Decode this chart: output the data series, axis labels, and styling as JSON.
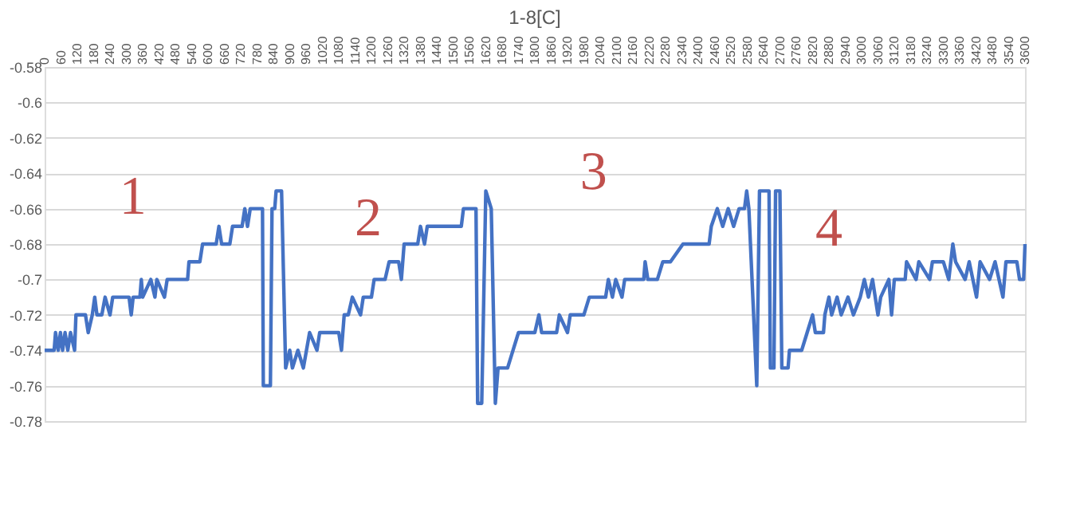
{
  "chart_data": {
    "type": "line",
    "title": "1-8[C]",
    "x": [
      0,
      35,
      40,
      50,
      58,
      66,
      75,
      85,
      95,
      110,
      115,
      150,
      160,
      175,
      184,
      192,
      210,
      222,
      240,
      250,
      310,
      318,
      325,
      350,
      355,
      360,
      390,
      405,
      412,
      440,
      450,
      525,
      530,
      570,
      580,
      630,
      640,
      650,
      680,
      690,
      725,
      735,
      745,
      755,
      800,
      803,
      829,
      835,
      845,
      850,
      870,
      885,
      900,
      910,
      930,
      950,
      973,
      1000,
      1010,
      1080,
      1090,
      1100,
      1115,
      1130,
      1160,
      1170,
      1200,
      1210,
      1250,
      1265,
      1300,
      1310,
      1320,
      1370,
      1380,
      1395,
      1405,
      1530,
      1538,
      1584,
      1590,
      1605,
      1620,
      1640,
      1655,
      1665,
      1700,
      1720,
      1740,
      1800,
      1815,
      1825,
      1880,
      1890,
      1920,
      1930,
      1980,
      2000,
      2060,
      2070,
      2085,
      2097,
      2120,
      2130,
      2200,
      2205,
      2215,
      2250,
      2270,
      2298,
      2344,
      2440,
      2448,
      2470,
      2490,
      2510,
      2530,
      2550,
      2570,
      2578,
      2586,
      2615,
      2625,
      2660,
      2665,
      2678,
      2684,
      2700,
      2707,
      2730,
      2735,
      2780,
      2800,
      2820,
      2830,
      2860,
      2865,
      2880,
      2890,
      2910,
      2925,
      2950,
      2970,
      2995,
      3010,
      3025,
      3040,
      3060,
      3070,
      3100,
      3110,
      3120,
      3160,
      3165,
      3200,
      3210,
      3250,
      3260,
      3300,
      3320,
      3335,
      3345,
      3380,
      3395,
      3422,
      3435,
      3470,
      3490,
      3519,
      3530,
      3570,
      3580,
      3595,
      3600
    ],
    "series": [
      {
        "color": "#4472c4",
        "values": [
          -0.74,
          -0.74,
          -0.73,
          -0.74,
          -0.73,
          -0.74,
          -0.73,
          -0.74,
          -0.73,
          -0.74,
          -0.72,
          -0.72,
          -0.73,
          -0.72,
          -0.71,
          -0.72,
          -0.72,
          -0.71,
          -0.72,
          -0.71,
          -0.71,
          -0.72,
          -0.71,
          -0.71,
          -0.7,
          -0.71,
          -0.7,
          -0.71,
          -0.7,
          -0.71,
          -0.7,
          -0.7,
          -0.69,
          -0.69,
          -0.68,
          -0.68,
          -0.67,
          -0.68,
          -0.68,
          -0.67,
          -0.67,
          -0.66,
          -0.67,
          -0.66,
          -0.66,
          -0.76,
          -0.76,
          -0.66,
          -0.66,
          -0.65,
          -0.65,
          -0.75,
          -0.74,
          -0.75,
          -0.74,
          -0.75,
          -0.73,
          -0.74,
          -0.73,
          -0.73,
          -0.74,
          -0.72,
          -0.72,
          -0.71,
          -0.72,
          -0.71,
          -0.71,
          -0.7,
          -0.7,
          -0.69,
          -0.69,
          -0.7,
          -0.68,
          -0.68,
          -0.67,
          -0.68,
          -0.67,
          -0.67,
          -0.66,
          -0.66,
          -0.77,
          -0.77,
          -0.65,
          -0.66,
          -0.77,
          -0.75,
          -0.75,
          -0.74,
          -0.73,
          -0.73,
          -0.72,
          -0.73,
          -0.73,
          -0.72,
          -0.73,
          -0.72,
          -0.72,
          -0.71,
          -0.71,
          -0.7,
          -0.71,
          -0.7,
          -0.71,
          -0.7,
          -0.7,
          -0.69,
          -0.7,
          -0.7,
          -0.69,
          -0.69,
          -0.68,
          -0.68,
          -0.67,
          -0.66,
          -0.67,
          -0.66,
          -0.67,
          -0.66,
          -0.66,
          -0.65,
          -0.66,
          -0.76,
          -0.65,
          -0.65,
          -0.75,
          -0.75,
          -0.65,
          -0.65,
          -0.75,
          -0.75,
          -0.74,
          -0.74,
          -0.73,
          -0.72,
          -0.73,
          -0.73,
          -0.72,
          -0.71,
          -0.72,
          -0.71,
          -0.72,
          -0.71,
          -0.72,
          -0.71,
          -0.7,
          -0.71,
          -0.7,
          -0.72,
          -0.71,
          -0.7,
          -0.72,
          -0.7,
          -0.7,
          -0.69,
          -0.7,
          -0.69,
          -0.7,
          -0.69,
          -0.69,
          -0.7,
          -0.68,
          -0.69,
          -0.7,
          -0.69,
          -0.71,
          -0.69,
          -0.7,
          -0.69,
          -0.71,
          -0.69,
          -0.69,
          -0.7,
          -0.7,
          -0.68
        ]
      }
    ],
    "xlim": [
      0,
      3600
    ],
    "xticks": [
      0,
      60,
      120,
      180,
      240,
      300,
      360,
      420,
      480,
      540,
      600,
      660,
      720,
      780,
      840,
      900,
      960,
      1020,
      1080,
      1140,
      1200,
      1260,
      1320,
      1380,
      1440,
      1500,
      1560,
      1620,
      1680,
      1740,
      1800,
      1860,
      1920,
      1980,
      2040,
      2100,
      2160,
      2220,
      2280,
      2340,
      2400,
      2460,
      2520,
      2580,
      2640,
      2700,
      2760,
      2820,
      2880,
      2940,
      3000,
      3060,
      3120,
      3180,
      3240,
      3300,
      3360,
      3420,
      3480,
      3540,
      3600
    ],
    "ylim": [
      -0.78,
      -0.58
    ],
    "yticks": [
      -0.58,
      -0.6,
      -0.62,
      -0.64,
      -0.66,
      -0.68,
      -0.7,
      -0.72,
      -0.74,
      -0.76,
      -0.78
    ],
    "grid": "y",
    "legend": false,
    "marker": "none",
    "line_style": "solid",
    "annotations": [
      "1",
      "2",
      "3",
      "4"
    ]
  }
}
